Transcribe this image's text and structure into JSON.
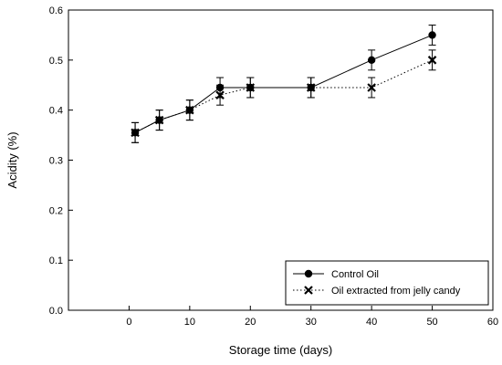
{
  "chart_data": {
    "type": "line",
    "xlabel": "Storage time (days)",
    "ylabel": "Acidity (%)",
    "xlim": [
      -10,
      60
    ],
    "ylim": [
      0.0,
      0.6
    ],
    "xticks": [
      0,
      10,
      20,
      30,
      40,
      50,
      60
    ],
    "yticks": [
      0.0,
      0.1,
      0.2,
      0.3,
      0.4,
      0.5,
      0.6
    ],
    "ytick_labels": [
      "0.0",
      "0.1",
      "0.2",
      "0.3",
      "0.4",
      "0.5",
      "0.6"
    ],
    "grid": false,
    "legend_position": "bottom-right",
    "series": [
      {
        "name": "Control Oil",
        "marker": "circle",
        "line_style": "solid",
        "x": [
          1,
          5,
          10,
          15,
          20,
          30,
          40,
          50
        ],
        "y": [
          0.355,
          0.38,
          0.4,
          0.445,
          0.445,
          0.445,
          0.5,
          0.55
        ],
        "error": [
          0.02,
          0.02,
          0.02,
          0.02,
          0.02,
          0.02,
          0.02,
          0.02
        ]
      },
      {
        "name": "Oil extracted from jelly candy",
        "marker": "x",
        "line_style": "dotted",
        "x": [
          1,
          5,
          10,
          15,
          20,
          30,
          40,
          50
        ],
        "y": [
          0.355,
          0.38,
          0.4,
          0.43,
          0.445,
          0.445,
          0.445,
          0.5
        ],
        "error": [
          0.02,
          0.02,
          0.02,
          0.02,
          0.02,
          0.02,
          0.02,
          0.02
        ]
      }
    ]
  }
}
